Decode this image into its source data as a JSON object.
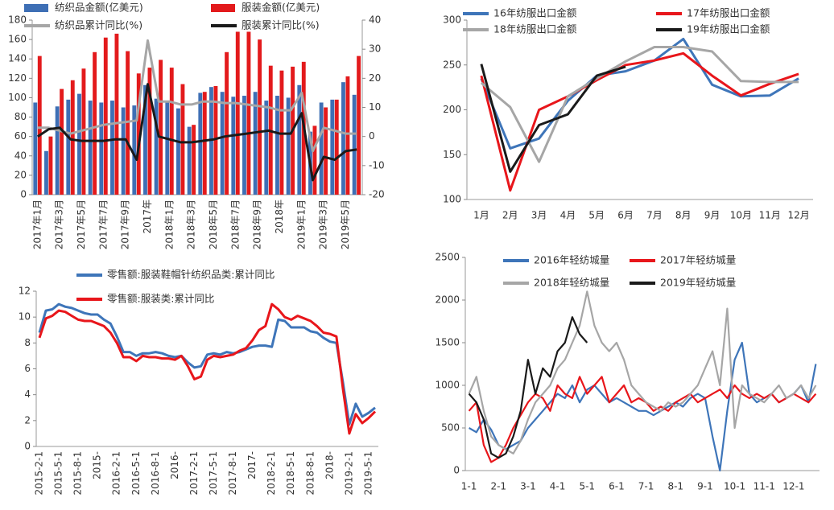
{
  "chart_data": [
    {
      "type": "bar",
      "categories": [
        "2017年1月",
        null,
        "2017年3月",
        null,
        "2017年5月",
        null,
        "2017年7月",
        null,
        "2017年9月",
        null,
        "2017年",
        null,
        "2018年1月",
        null,
        "2018年3月",
        null,
        "2018年5月",
        null,
        "2018年7月",
        null,
        "2018年9月",
        null,
        "2018年",
        null,
        "2019年1月",
        null,
        "2019年3月",
        null,
        "2019年5月",
        null
      ],
      "series": [
        {
          "name": "纺织品金额(亿美元)",
          "type": "bar",
          "color": "#3e6fb5",
          "values": [
            95,
            45,
            91,
            98,
            104,
            97,
            95,
            97,
            90,
            92,
            113,
            99,
            96,
            89,
            70,
            105,
            111,
            106,
            101,
            102,
            106,
            97,
            102,
            100,
            113,
            65,
            95,
            98,
            116,
            103
          ]
        },
        {
          "name": "服装金额(亿美元)",
          "type": "bar",
          "color": "#e31a1c",
          "values": [
            143,
            60,
            109,
            118,
            130,
            147,
            162,
            166,
            148,
            125,
            131,
            139,
            131,
            114,
            72,
            106,
            112,
            147,
            168,
            168,
            160,
            133,
            128,
            132,
            137,
            71,
            90,
            98,
            122,
            143
          ]
        },
        {
          "name": "纺织品累计同比(%)",
          "type": "line",
          "axis": "y2",
          "color": "#a6a6a6",
          "values": [
            3,
            3,
            2,
            1,
            2,
            3,
            4,
            4.5,
            5,
            5.5,
            33,
            12,
            12,
            11,
            11,
            12,
            12,
            11.5,
            11.5,
            11,
            10.5,
            10,
            9,
            9,
            15,
            -5,
            3,
            2,
            1,
            1
          ]
        },
        {
          "name": "服装累计同比(%)",
          "type": "line",
          "axis": "y2",
          "color": "#1a1a1a",
          "values": [
            0,
            2.5,
            3,
            -1,
            -1.5,
            -1.5,
            -1.5,
            -1,
            -1,
            -8,
            18,
            0,
            -1,
            -2,
            -2,
            -1.5,
            -1,
            0,
            0.5,
            1,
            1.5,
            2,
            1,
            1,
            8,
            -15,
            -7,
            -8,
            -5,
            -4.5
          ]
        }
      ],
      "ylim": [
        0,
        180
      ],
      "yticks": [
        0,
        20,
        40,
        60,
        80,
        100,
        120,
        140,
        160,
        180
      ],
      "y2lim": [
        -20,
        40
      ],
      "y2ticks": [
        -20,
        -10,
        0,
        10,
        20,
        30,
        40
      ]
    },
    {
      "type": "line",
      "categories": [
        "1月",
        "2月",
        "3月",
        "4月",
        "5月",
        "6月",
        "7月",
        "8月",
        "9月",
        "10月",
        "11月",
        "12月"
      ],
      "series": [
        {
          "name": "16年纺服出口金额",
          "color": "#3e75b9",
          "values": [
            235,
            157,
            168,
            210,
            238,
            243,
            255,
            279,
            228,
            215,
            216,
            235
          ]
        },
        {
          "name": "17年纺服出口金额",
          "color": "#e8161b",
          "values": [
            238,
            110,
            200,
            215,
            233,
            250,
            255,
            263,
            238,
            216,
            229,
            240
          ]
        },
        {
          "name": "18年纺服出口金额",
          "color": "#a6a6a6",
          "values": [
            230,
            203,
            142,
            215,
            235,
            254,
            270,
            270,
            265,
            232,
            231,
            231
          ]
        },
        {
          "name": "19年纺服出口金额",
          "color": "#1a1a1a",
          "values": [
            251,
            131,
            183,
            195,
            238,
            248,
            null,
            null,
            null,
            null,
            null,
            null
          ]
        }
      ],
      "ylim": [
        100,
        300
      ],
      "yticks": [
        100,
        150,
        200,
        250,
        300
      ]
    },
    {
      "type": "line",
      "categories": [
        "2015-2-1",
        null,
        null,
        "2015-5-1",
        null,
        null,
        "2015-8-1",
        null,
        null,
        "2015-",
        null,
        null,
        "2016-2-1",
        null,
        null,
        "2016-5-1",
        null,
        null,
        "2016-8-1",
        null,
        null,
        "2016-",
        null,
        null,
        "2017-2-1",
        null,
        null,
        "2017-5-1",
        null,
        null,
        "2017-8-1",
        null,
        null,
        "2017-",
        null,
        null,
        "2018-2-1",
        null,
        null,
        "2018-5-1",
        null,
        null,
        "2018-8-1",
        null,
        null,
        "2018-",
        null,
        null,
        "2019-2-1",
        null,
        null,
        "2019-5-1",
        null
      ],
      "series": [
        {
          "name": "零售额:服装鞋帽针纺织品类:累计同比",
          "color": "#3e75b9",
          "values": [
            8.8,
            10.5,
            10.6,
            11.0,
            10.8,
            10.7,
            10.5,
            10.3,
            10.2,
            10.2,
            9.8,
            9.5,
            8.5,
            7.3,
            7.3,
            7.0,
            7.2,
            7.2,
            7.3,
            7.2,
            7.0,
            6.9,
            7.0,
            6.5,
            6.1,
            6.2,
            7.1,
            7.2,
            7.1,
            7.3,
            7.2,
            7.3,
            7.5,
            7.7,
            7.8,
            7.8,
            7.7,
            9.8,
            9.7,
            9.2,
            9.2,
            9.2,
            8.9,
            8.8,
            8.4,
            8.1,
            8.0,
            5.0,
            1.7,
            3.3,
            2.3,
            2.6,
            3.0
          ]
        },
        {
          "name": "零售额:服装类:累计同比",
          "color": "#e8161b",
          "values": [
            8.4,
            9.9,
            10.1,
            10.5,
            10.4,
            10.1,
            9.8,
            9.7,
            9.7,
            9.5,
            9.3,
            8.8,
            8.0,
            6.9,
            6.9,
            6.6,
            7.0,
            6.9,
            6.9,
            6.8,
            6.8,
            6.7,
            7.0,
            6.2,
            5.2,
            5.4,
            6.7,
            7.0,
            6.9,
            7.0,
            7.1,
            7.4,
            7.6,
            8.2,
            9.0,
            9.3,
            11.0,
            10.6,
            10.0,
            9.8,
            10.1,
            9.9,
            9.7,
            9.3,
            8.8,
            8.7,
            8.5,
            4.5,
            1.0,
            2.5,
            1.8,
            2.2,
            2.7
          ]
        }
      ],
      "ylim": [
        0,
        12
      ],
      "yticks": [
        0,
        2,
        4,
        6,
        8,
        10,
        12
      ]
    },
    {
      "type": "line",
      "categories": [
        "1-1",
        null,
        null,
        null,
        "2-1",
        null,
        null,
        null,
        "3-1",
        null,
        null,
        null,
        "4-1",
        null,
        null,
        null,
        "5-1",
        null,
        null,
        null,
        "6-1",
        null,
        null,
        null,
        "7-1",
        null,
        null,
        null,
        "8-1",
        null,
        null,
        null,
        "9-1",
        null,
        null,
        null,
        "10-1",
        null,
        null,
        null,
        "11-1",
        null,
        null,
        null,
        "12-1",
        null,
        null,
        null
      ],
      "series": [
        {
          "name": "2016年轻纺城量",
          "color": "#3e75b9",
          "values": [
            500,
            450,
            600,
            480,
            300,
            250,
            300,
            350,
            500,
            600,
            700,
            800,
            900,
            850,
            1000,
            800,
            950,
            1000,
            900,
            800,
            850,
            800,
            750,
            700,
            700,
            650,
            700,
            750,
            800,
            750,
            850,
            900,
            850,
            400,
            0,
            700,
            1300,
            1500,
            900,
            800,
            850,
            900,
            800,
            850,
            900,
            1000,
            800,
            1250
          ]
        },
        {
          "name": "2017年轻纺城量",
          "color": "#e8161b",
          "values": [
            700,
            800,
            300,
            100,
            150,
            300,
            500,
            650,
            800,
            900,
            850,
            700,
            1000,
            900,
            850,
            1100,
            900,
            1000,
            1100,
            800,
            900,
            1000,
            800,
            850,
            800,
            700,
            750,
            700,
            800,
            850,
            900,
            800,
            850,
            900,
            950,
            850,
            1000,
            900,
            850,
            900,
            850,
            900,
            800,
            850,
            900,
            850,
            800,
            900
          ]
        },
        {
          "name": "2018年轻纺城量",
          "color": "#a6a6a6",
          "values": [
            900,
            1100,
            700,
            400,
            300,
            250,
            200,
            350,
            600,
            800,
            900,
            1000,
            1200,
            1300,
            1500,
            1700,
            2100,
            1700,
            1500,
            1400,
            1500,
            1300,
            1000,
            900,
            800,
            750,
            700,
            800,
            750,
            800,
            900,
            1000,
            1200,
            1400,
            1000,
            1900,
            500,
            1000,
            900,
            850,
            800,
            900,
            1000,
            850,
            900,
            1000,
            850,
            1000
          ]
        },
        {
          "name": "2019年轻纺城量",
          "color": "#1a1a1a",
          "values": [
            900,
            800,
            600,
            200,
            150,
            200,
            400,
            700,
            1300,
            900,
            1200,
            1100,
            1400,
            1500,
            1800,
            1600,
            1500,
            null,
            null,
            null,
            null,
            null,
            null,
            null,
            null,
            null,
            null,
            null,
            null,
            null,
            null,
            null,
            null,
            null,
            null,
            null,
            null,
            null,
            null,
            null,
            null,
            null,
            null,
            null,
            null,
            null,
            null,
            null
          ]
        }
      ],
      "ylim": [
        0,
        2500
      ],
      "yticks": [
        0,
        500,
        1000,
        1500,
        2000,
        2500
      ]
    }
  ]
}
